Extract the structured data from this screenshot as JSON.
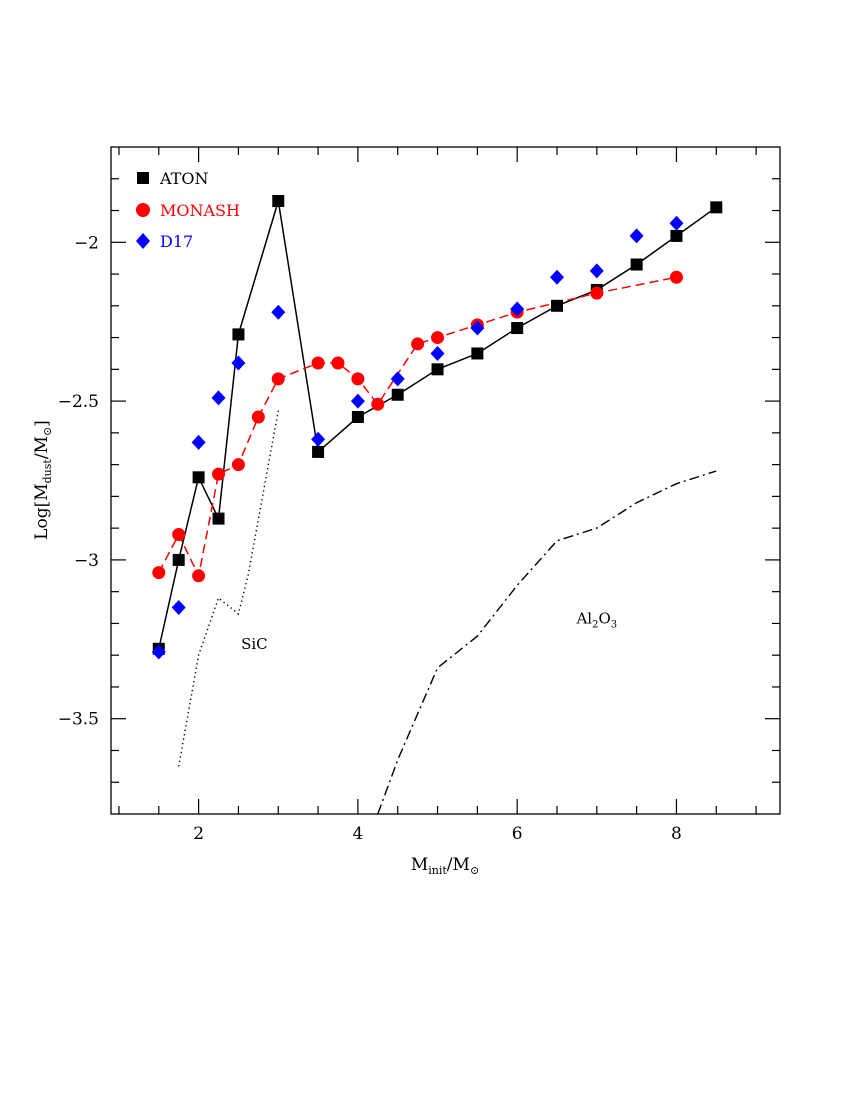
{
  "chart_data": {
    "type": "scatter",
    "xlabel": {
      "main": "M",
      "sub": "init",
      "rest": "/M",
      "sun": "⊙"
    },
    "ylabel": {
      "pre": "Log[M",
      "sub": "dust",
      "rest": "/M",
      "sun": "⊙",
      "post": "]"
    },
    "xlim": [
      0.9,
      9.3
    ],
    "ylim": [
      -3.8,
      -1.7
    ],
    "xticks": [
      2,
      4,
      6,
      8
    ],
    "yticks": [
      -3.5,
      -3,
      -2.5,
      -2
    ],
    "yticklabels": [
      "−3.5",
      "−3",
      "−2.5",
      "−2"
    ],
    "legend_position": "top-left",
    "series": [
      {
        "name": "ATON",
        "color": "#000000",
        "marker": "square",
        "line": "solid",
        "x": [
          1.5,
          1.75,
          2.0,
          2.25,
          2.5,
          3.0,
          3.5,
          4.0,
          4.5,
          5.0,
          5.5,
          6.0,
          6.5,
          7.0,
          7.5,
          8.0,
          8.5
        ],
        "y": [
          -3.28,
          -3.0,
          -2.74,
          -2.87,
          -2.29,
          -1.87,
          -2.66,
          -2.55,
          -2.48,
          -2.4,
          -2.35,
          -2.27,
          -2.2,
          -2.15,
          -2.07,
          -1.98,
          -1.89
        ]
      },
      {
        "name": "MONASH",
        "color": "#ff0000",
        "marker": "circle",
        "line": "dashed",
        "x": [
          1.5,
          1.75,
          2.0,
          2.25,
          2.5,
          2.75,
          3.0,
          3.5,
          3.75,
          4.0,
          4.25,
          4.75,
          5.0,
          5.5,
          6.0,
          7.0,
          8.0
        ],
        "y": [
          -3.04,
          -2.92,
          -3.05,
          -2.73,
          -2.7,
          -2.55,
          -2.43,
          -2.38,
          -2.38,
          -2.43,
          -2.51,
          -2.32,
          -2.3,
          -2.26,
          -2.22,
          -2.16,
          -2.11
        ]
      },
      {
        "name": "D17",
        "color": "#0000ff",
        "marker": "diamond",
        "line": "none",
        "x": [
          1.5,
          1.75,
          2.0,
          2.25,
          2.5,
          3.0,
          3.5,
          4.0,
          4.5,
          5.0,
          5.5,
          6.0,
          6.5,
          7.0,
          7.5,
          8.0
        ],
        "y": [
          -3.29,
          -3.15,
          -2.63,
          -2.49,
          -2.38,
          -2.22,
          -2.62,
          -2.5,
          -2.43,
          -2.35,
          -2.27,
          -2.21,
          -2.11,
          -2.09,
          -1.98,
          -1.94
        ]
      }
    ],
    "curves": [
      {
        "name": "SiC",
        "color": "#000000",
        "line": "dotted",
        "x": [
          1.75,
          2.0,
          2.25,
          2.35,
          2.5,
          2.62,
          3.0
        ],
        "y": [
          -3.65,
          -3.3,
          -3.12,
          -3.14,
          -3.17,
          -3.05,
          -2.53
        ]
      },
      {
        "name": "Al2O3",
        "color": "#000000",
        "line": "dashdot",
        "x": [
          4.25,
          4.5,
          5.0,
          5.5,
          6.0,
          6.5,
          7.0,
          7.5,
          8.0,
          8.5
        ],
        "y": [
          -3.8,
          -3.63,
          -3.34,
          -3.24,
          -3.08,
          -2.94,
          -2.9,
          -2.82,
          -2.76,
          -2.72
        ]
      }
    ],
    "annotations": [
      {
        "id": "sic",
        "label": "SiC",
        "x": 2.7,
        "y": -3.28
      },
      {
        "id": "al2o3",
        "main": "Al",
        "sub1": "2",
        "mid": "O",
        "sub2": "3",
        "x": 7.0,
        "y": -3.2
      }
    ]
  }
}
